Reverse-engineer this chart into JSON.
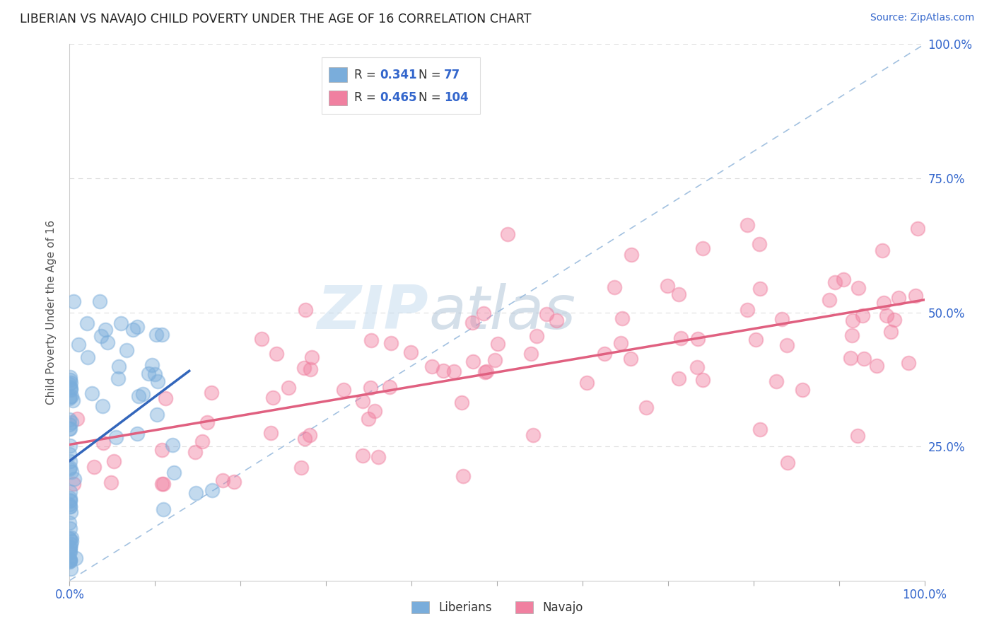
{
  "title": "LIBERIAN VS NAVAJO CHILD POVERTY UNDER THE AGE OF 16 CORRELATION CHART",
  "source_text": "Source: ZipAtlas.com",
  "ylabel": "Child Poverty Under the Age of 16",
  "xlim": [
    0.0,
    1.0
  ],
  "ylim": [
    0.0,
    1.0
  ],
  "liberian_R": 0.341,
  "liberian_N": 77,
  "navajo_R": 0.465,
  "navajo_N": 104,
  "liberian_color": "#7aaddb",
  "navajo_color": "#f080a0",
  "liberian_line_color": "#3366bb",
  "navajo_line_color": "#e06080",
  "diagonal_color": "#99bbdd",
  "watermark_zip": "ZIP",
  "watermark_atlas": "atlas",
  "background_color": "#ffffff",
  "grid_color": "#dddddd",
  "title_color": "#222222",
  "axis_color": "#3366cc",
  "ylabel_color": "#555555"
}
